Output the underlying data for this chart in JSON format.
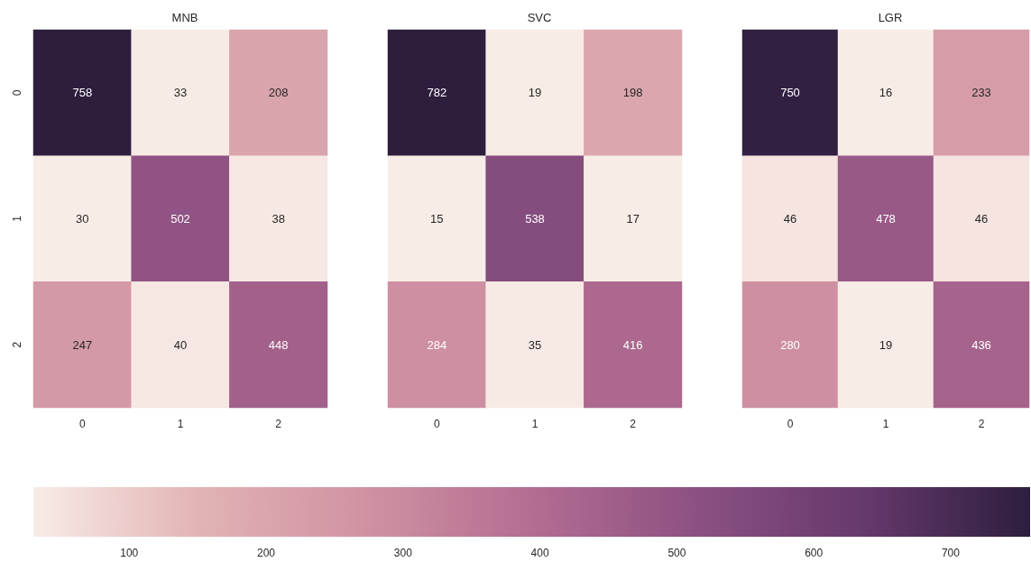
{
  "chart_data": [
    {
      "type": "heatmap",
      "data_labels": true,
      "title": "MNB",
      "categories": [
        "0",
        "1",
        "2"
      ],
      "y_categories": [
        "0",
        "1",
        "2"
      ],
      "cells": [
        [
          758,
          33,
          208
        ],
        [
          30,
          502,
          38
        ],
        [
          247,
          40,
          448
        ]
      ],
      "clim": [
        30,
        758
      ],
      "cticks": [
        100,
        200,
        300,
        400,
        500,
        600,
        700
      ]
    },
    {
      "type": "heatmap",
      "data_labels": true,
      "title": "SVC",
      "categories": [
        "0",
        "1",
        "2"
      ],
      "y_categories": [
        "0",
        "1",
        "2"
      ],
      "cells": [
        [
          782,
          19,
          198
        ],
        [
          15,
          538,
          17
        ],
        [
          284,
          35,
          416
        ]
      ],
      "tick_labels": "x"
    },
    {
      "type": "heatmap",
      "data_labels": true,
      "title": "LGR",
      "categories": [
        "0",
        "1",
        "2"
      ],
      "y_categories": [
        "0",
        "1",
        "2"
      ],
      "cells": [
        [
          750,
          16,
          233
        ],
        [
          46,
          478,
          46
        ],
        [
          280,
          19,
          436
        ]
      ],
      "tick_labels": "x"
    }
  ]
}
